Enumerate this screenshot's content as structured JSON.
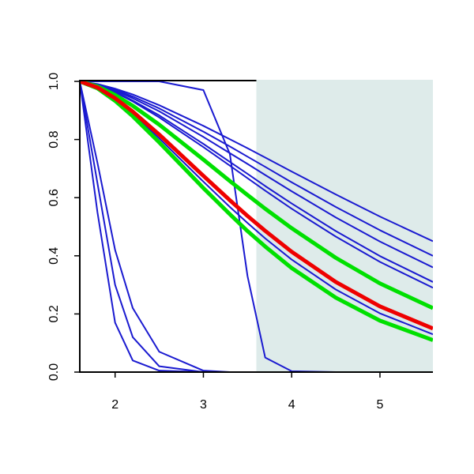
{
  "chart_data": {
    "type": "line",
    "x": [
      1.6,
      1.8,
      2.0,
      2.2,
      2.5,
      3.0,
      3.3,
      3.5,
      3.7,
      4.0,
      4.5,
      5.0,
      5.6
    ],
    "xlim": [
      1.6,
      5.6
    ],
    "xticks": [
      2,
      3,
      4,
      5
    ],
    "ylim": [
      0,
      1
    ],
    "yticks": [
      {
        "value": 0,
        "label": "0.0"
      },
      0.2,
      0.4,
      0.6,
      0.8,
      {
        "value": 1,
        "label": "1.0"
      }
    ],
    "shaded_x": [
      3.6,
      5.6
    ],
    "shade_color": "#deebea",
    "series": [
      {
        "color": "#1a1ad0",
        "values": [
          1,
          0.991,
          0.975,
          0.955,
          0.918,
          0.847,
          0.801,
          0.77,
          0.738,
          0.69,
          0.611,
          0.535,
          0.45
        ]
      },
      {
        "color": "#1a1ad0",
        "values": [
          1,
          0.99,
          0.972,
          0.948,
          0.907,
          0.827,
          0.776,
          0.741,
          0.706,
          0.653,
          0.568,
          0.488,
          0.4
        ]
      },
      {
        "color": "#1a1ad0",
        "values": [
          1,
          0.989,
          0.968,
          0.942,
          0.897,
          0.809,
          0.753,
          0.716,
          0.678,
          0.622,
          0.532,
          0.449,
          0.36
        ]
      },
      {
        "color": "#1a1ad0",
        "values": [
          1,
          0.987,
          0.964,
          0.934,
          0.883,
          0.785,
          0.723,
          0.682,
          0.64,
          0.58,
          0.485,
          0.399,
          0.31
        ]
      },
      {
        "color": "#1a1ad0",
        "values": [
          1,
          0.986,
          0.962,
          0.931,
          0.876,
          0.774,
          0.71,
          0.667,
          0.624,
          0.562,
          0.466,
          0.379,
          0.29
        ]
      },
      {
        "color": "#1a1ad0",
        "values": [
          1,
          0.977,
          0.938,
          0.888,
          0.804,
          0.655,
          0.568,
          0.513,
          0.46,
          0.387,
          0.284,
          0.202,
          0.13
        ]
      },
      {
        "color": "#1a1ad0",
        "values": [
          1,
          0.55,
          0.17,
          0.04,
          0.005,
          0,
          0,
          0,
          0,
          0,
          0,
          0,
          0
        ]
      },
      {
        "color": "#1a1ad0",
        "values": [
          1,
          0.65,
          0.3,
          0.12,
          0.02,
          0,
          0,
          0,
          0,
          0,
          0,
          0,
          0
        ]
      },
      {
        "color": "#1a1ad0",
        "values": [
          1,
          0.72,
          0.42,
          0.22,
          0.07,
          0.005,
          0,
          0,
          0,
          0,
          0,
          0,
          0
        ]
      },
      {
        "color": "#1a1ad0",
        "values": [
          1,
          1,
          1,
          1,
          1,
          0.97,
          0.75,
          0.33,
          0.05,
          0.003,
          0,
          0,
          0
        ]
      },
      {
        "color": "#00e000",
        "values": [
          1,
          0.983,
          0.953,
          0.916,
          0.851,
          0.731,
          0.657,
          0.609,
          0.562,
          0.495,
          0.393,
          0.305,
          0.22
        ]
      },
      {
        "color": "#00e000",
        "values": [
          1,
          0.976,
          0.933,
          0.88,
          0.79,
          0.633,
          0.543,
          0.485,
          0.432,
          0.358,
          0.256,
          0.177,
          0.11
        ]
      },
      {
        "color": "#ee0000",
        "values": [
          1,
          0.979,
          0.942,
          0.896,
          0.817,
          0.675,
          0.591,
          0.537,
          0.486,
          0.414,
          0.31,
          0.226,
          0.15
        ]
      }
    ]
  }
}
